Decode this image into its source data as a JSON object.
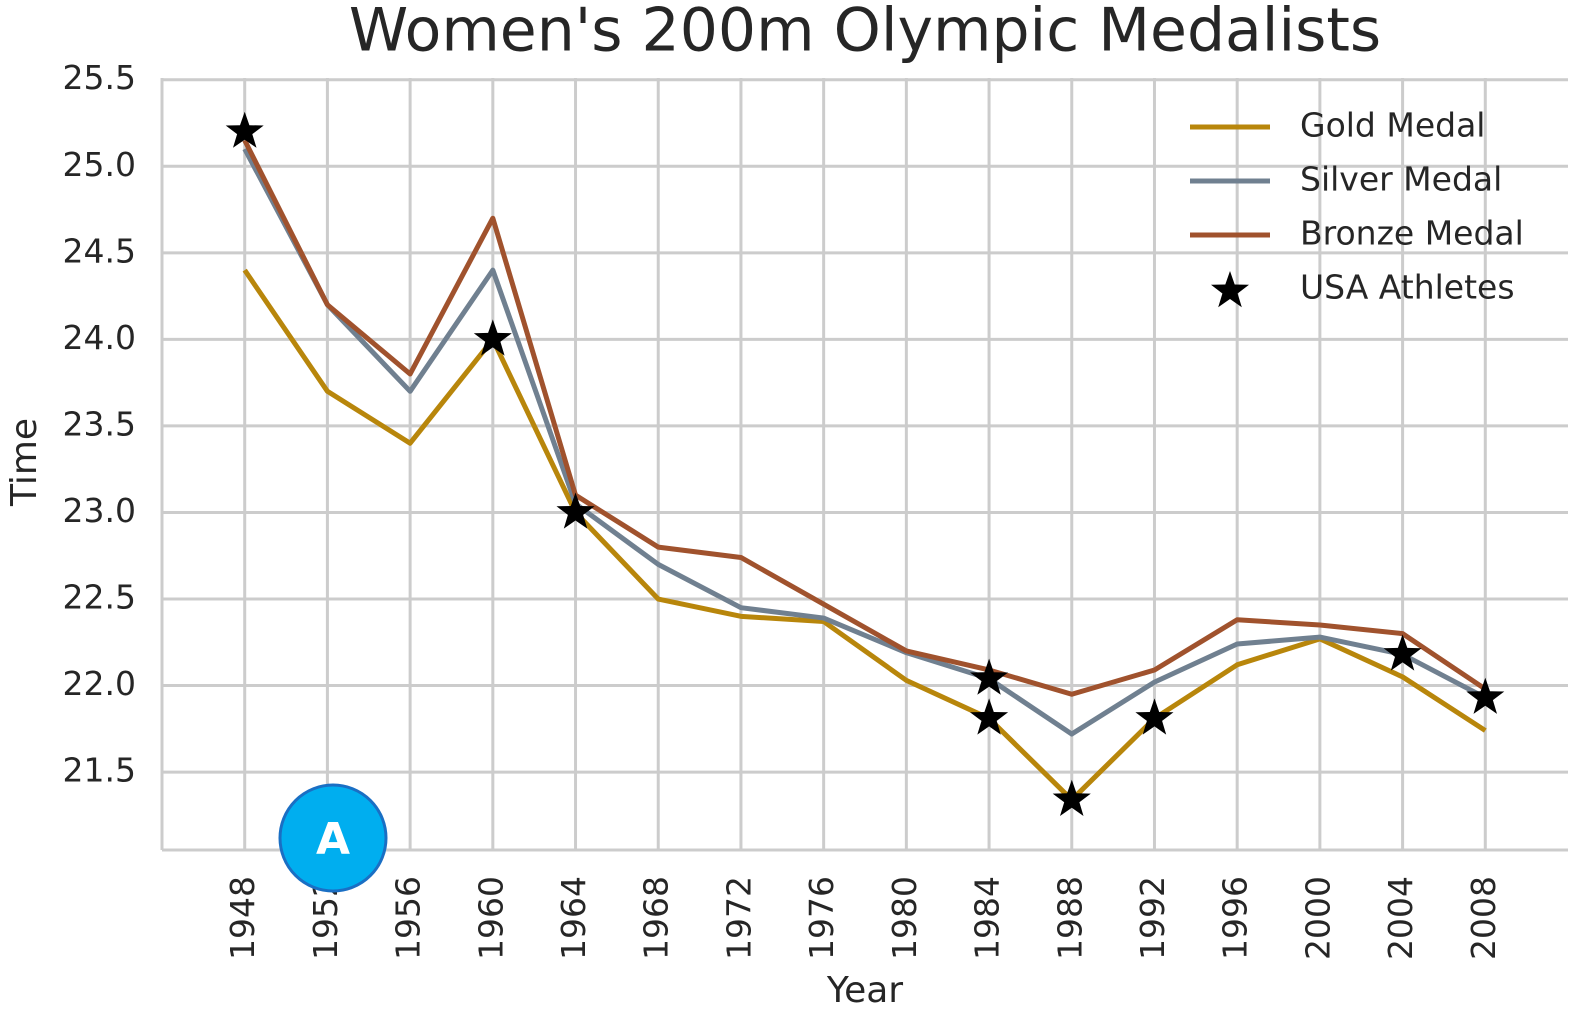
{
  "chart_data": {
    "type": "line",
    "title": "Women's 200m Olympic Medalists",
    "xlabel": "Year",
    "ylabel": "Time",
    "annotation": "A",
    "x": [
      1948,
      1952,
      1956,
      1960,
      1964,
      1968,
      1972,
      1976,
      1980,
      1984,
      1988,
      1992,
      1996,
      2000,
      2004,
      2008
    ],
    "series": [
      {
        "name": "Gold Medal",
        "color": "#b8860b",
        "values": [
          24.4,
          23.7,
          23.4,
          24.0,
          23.0,
          22.5,
          22.4,
          22.37,
          22.03,
          21.81,
          21.34,
          21.81,
          22.12,
          22.27,
          22.05,
          21.74
        ]
      },
      {
        "name": "Silver Medal",
        "color": "#708090",
        "values": [
          25.1,
          24.2,
          23.7,
          24.4,
          23.05,
          22.7,
          22.45,
          22.39,
          22.19,
          22.04,
          21.72,
          22.02,
          22.24,
          22.28,
          22.18,
          21.93
        ]
      },
      {
        "name": "Bronze Medal",
        "color": "#a0522d",
        "values": [
          25.15,
          24.2,
          23.8,
          24.7,
          23.1,
          22.8,
          22.74,
          22.47,
          22.2,
          22.09,
          21.95,
          22.09,
          22.38,
          22.35,
          22.3,
          21.98
        ]
      },
      {
        "name": "USA Athletes",
        "type": "scatter",
        "marker": "star",
        "color": "#000000",
        "x": [
          1948,
          1960,
          1964,
          1984,
          1984,
          1988,
          1992,
          2004,
          2008
        ],
        "values": [
          25.2,
          24.0,
          23.0,
          22.04,
          21.81,
          21.34,
          21.81,
          22.18,
          21.93
        ]
      }
    ],
    "xlim": [
      1944,
      2012
    ],
    "xticks": [
      1948,
      1952,
      1956,
      1960,
      1964,
      1968,
      1972,
      1976,
      1980,
      1984,
      1988,
      1992,
      1996,
      2000,
      2004,
      2008
    ],
    "ylim": [
      21.05,
      25.51
    ],
    "yticks": [
      {
        "value": 21.5,
        "label": "21.5"
      },
      {
        "value": 22,
        "label": "22.0"
      },
      22.5,
      {
        "value": 23,
        "label": "23.0"
      },
      23.5,
      {
        "value": 24,
        "label": "24.0"
      },
      24.5,
      {
        "value": 25,
        "label": "25.0"
      },
      25.5
    ],
    "grid": true,
    "legend": "upper right"
  }
}
